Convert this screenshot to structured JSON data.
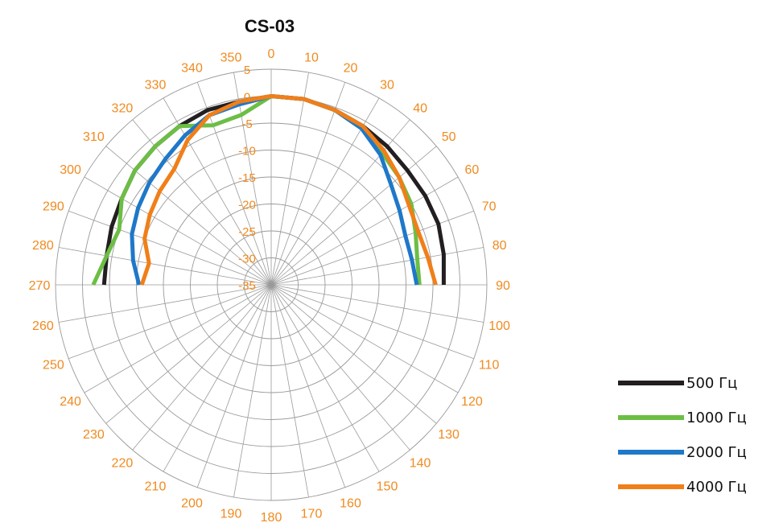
{
  "chart_data": {
    "type": "line",
    "subtype": "polar",
    "title": "CS-03",
    "angle_unit": "degrees",
    "angle_direction": "clockwise",
    "zero_at": "top",
    "angle_ticks": [
      0,
      10,
      20,
      30,
      40,
      50,
      60,
      70,
      80,
      90,
      100,
      110,
      120,
      130,
      140,
      150,
      160,
      170,
      180,
      190,
      200,
      210,
      220,
      230,
      240,
      250,
      260,
      270,
      280,
      290,
      300,
      310,
      320,
      330,
      340,
      350
    ],
    "radial_ticks": [
      5,
      0,
      -5,
      -10,
      -15,
      -20,
      -25,
      -30,
      -35
    ],
    "rlim": [
      -35,
      5
    ],
    "grid": true,
    "legend_position": "bottom-right",
    "series": [
      {
        "name": "500 Гц",
        "color": "#231f20",
        "angles": [
          270,
          280,
          290,
          300,
          310,
          320,
          330,
          340,
          350,
          0,
          10,
          20,
          30,
          40,
          50,
          60,
          70,
          80,
          90
        ],
        "values": [
          -4,
          -4,
          -3.5,
          -3,
          -2,
          -1.5,
          -1,
          -0.5,
          -0.5,
          0,
          0,
          -0.5,
          -1,
          -1.5,
          -2,
          -2,
          -2,
          -2.5,
          -3
        ]
      },
      {
        "name": "1000 Гц",
        "color": "#6cbe45",
        "angles": [
          270,
          280,
          290,
          300,
          310,
          320,
          330,
          340,
          350,
          0,
          10,
          20,
          30,
          40,
          50,
          60,
          70,
          80,
          90
        ],
        "values": [
          -2,
          -4,
          -5,
          -3,
          -2,
          -1.5,
          -1,
          -3.5,
          -3,
          0,
          0,
          -0.5,
          -1.5,
          -3,
          -4,
          -5,
          -6.5,
          -7.5,
          -7.5
        ]
      },
      {
        "name": "2000 Гц",
        "color": "#1f78c8",
        "angles": [
          270,
          280,
          290,
          300,
          310,
          320,
          330,
          340,
          350,
          0,
          10,
          20,
          30,
          40,
          50,
          60,
          70,
          80,
          90
        ],
        "values": [
          -10.5,
          -9,
          -7.5,
          -6.5,
          -5.5,
          -4.5,
          -3,
          -1.5,
          -1,
          0,
          0,
          -0.5,
          -1.5,
          -3.5,
          -6,
          -7.5,
          -8.5,
          -8.5,
          -8
        ]
      },
      {
        "name": "4000 Гц",
        "color": "#f07f19",
        "angles": [
          270,
          280,
          290,
          300,
          310,
          320,
          330,
          340,
          350,
          0,
          10,
          20,
          30,
          40,
          50,
          60,
          70,
          80,
          90
        ],
        "values": [
          -11,
          -12,
          -10,
          -9,
          -8,
          -7,
          -4,
          -1.5,
          -0.5,
          0,
          0,
          -0.5,
          -1,
          -2.5,
          -4,
          -5.5,
          -6,
          -5.5,
          -4.5
        ]
      }
    ]
  }
}
